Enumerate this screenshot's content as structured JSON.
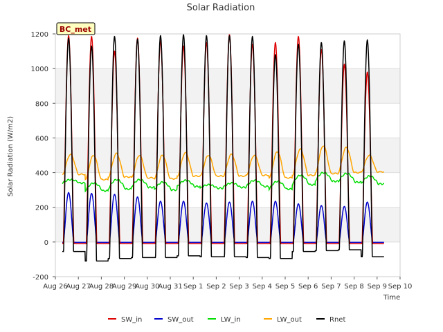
{
  "chart_data": {
    "type": "line",
    "title": "Solar Radiation",
    "xlabel": "Time",
    "ylabel": "Solar Radiation (W/m2)",
    "site_label": "BC_met",
    "xlim": [
      0,
      15
    ],
    "ylim": [
      -200,
      1200
    ],
    "x_ticks": [
      {
        "x": 0,
        "label": "Aug 26"
      },
      {
        "x": 1,
        "label": "Aug 27"
      },
      {
        "x": 2,
        "label": "Aug 28"
      },
      {
        "x": 3,
        "label": "Aug 29"
      },
      {
        "x": 4,
        "label": "Aug 30"
      },
      {
        "x": 5,
        "label": "Aug 31"
      },
      {
        "x": 6,
        "label": "Sep 1"
      },
      {
        "x": 7,
        "label": "Sep 2"
      },
      {
        "x": 8,
        "label": "Sep 3"
      },
      {
        "x": 9,
        "label": "Sep 4"
      },
      {
        "x": 10,
        "label": "Sep 5"
      },
      {
        "x": 11,
        "label": "Sep 6"
      },
      {
        "x": 12,
        "label": "Sep 7"
      },
      {
        "x": 13,
        "label": "Sep 8"
      },
      {
        "x": 14,
        "label": "Sep 9"
      },
      {
        "x": 15,
        "label": "Sep 10"
      }
    ],
    "y_ticks": [
      -200,
      0,
      200,
      400,
      600,
      800,
      1000,
      1200
    ],
    "grid": true,
    "legend_position": "bottom",
    "data_x_range": [
      0.3,
      14.3
    ],
    "daily": {
      "day_offsets": [
        0.3,
        1.3,
        2.3,
        3.3,
        4.3,
        5.3,
        6.3,
        7.3,
        8.3,
        9.3,
        10.3,
        11.3,
        12.3,
        13.3
      ],
      "sw_in_peak": [
        1190,
        1185,
        1100,
        1175,
        1160,
        1130,
        1150,
        1195,
        1140,
        1150,
        1185,
        1110,
        1025,
        980
      ],
      "rnet_peak": [
        1175,
        1130,
        1185,
        1170,
        1190,
        1195,
        1190,
        1190,
        1185,
        1080,
        1140,
        1150,
        1160,
        1165
      ],
      "sw_out_peak": [
        285,
        280,
        275,
        260,
        235,
        235,
        225,
        230,
        235,
        235,
        220,
        210,
        205,
        230
      ],
      "lw_in_day": [
        360,
        340,
        360,
        360,
        345,
        355,
        330,
        340,
        355,
        350,
        385,
        400,
        395,
        380
      ],
      "lw_in_night": [
        340,
        295,
        305,
        315,
        300,
        320,
        310,
        315,
        320,
        305,
        330,
        350,
        345,
        335
      ],
      "lw_out_day": [
        505,
        500,
        510,
        500,
        500,
        515,
        500,
        505,
        500,
        520,
        535,
        555,
        545,
        500
      ],
      "lw_out_night": [
        390,
        360,
        375,
        370,
        365,
        380,
        380,
        380,
        385,
        370,
        385,
        395,
        400,
        405
      ],
      "rnet_night": [
        -55,
        -110,
        -95,
        -90,
        -90,
        -80,
        -85,
        -85,
        -90,
        -95,
        -55,
        -50,
        -45,
        -85
      ],
      "sw_in_night": -10,
      "sw_out_night": -2
    },
    "series": [
      {
        "name": "SW_in",
        "color": "#dd0000"
      },
      {
        "name": "SW_out",
        "color": "#0000cc"
      },
      {
        "name": "LW_in",
        "color": "#00dd00"
      },
      {
        "name": "LW_out",
        "color": "#ffa500"
      },
      {
        "name": "Rnet",
        "color": "#000000"
      }
    ]
  }
}
